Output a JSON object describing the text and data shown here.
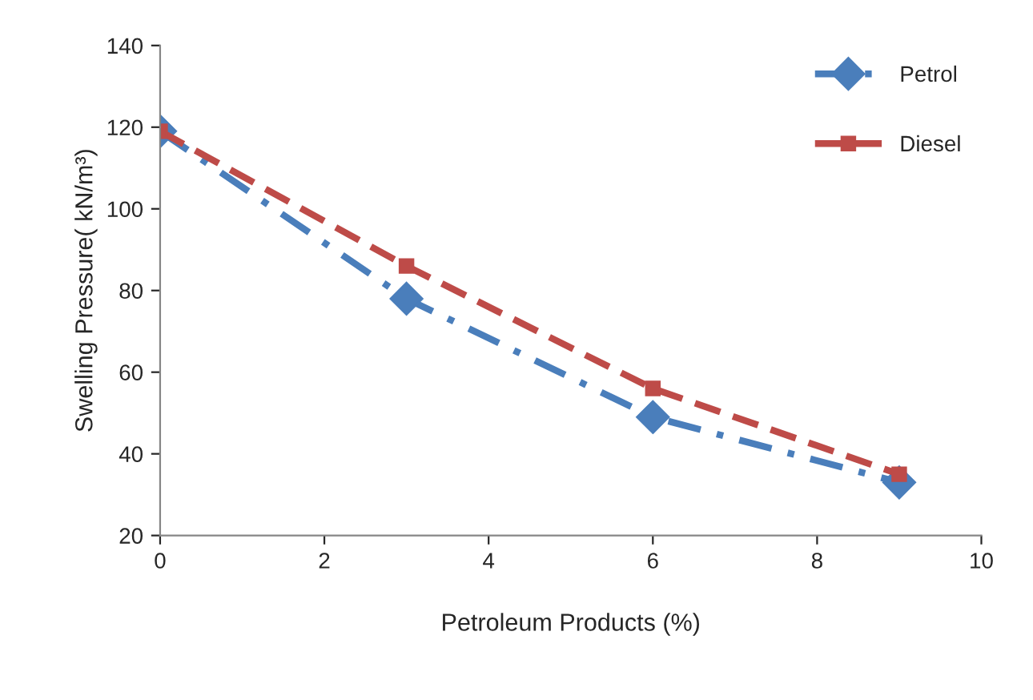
{
  "chart_data": {
    "type": "line",
    "x": [
      0,
      3,
      6,
      9
    ],
    "series": [
      {
        "name": "Petrol",
        "color": "#4a7ebb",
        "values": [
          119,
          78,
          49,
          33
        ],
        "marker": "diamond",
        "line_style": "dashdot"
      },
      {
        "name": "Diesel",
        "color": "#be4b48",
        "values": [
          119,
          86,
          56,
          35
        ],
        "marker": "square",
        "line_style": "dashed"
      }
    ],
    "xlabel": "Petroleum Products (%)",
    "ylabel": "Swelling Pressure( kN/m³)",
    "xlim": [
      0,
      10
    ],
    "xticks": [
      0,
      2,
      4,
      6,
      8,
      10
    ],
    "ylim": [
      20,
      140
    ],
    "yticks": [
      20,
      40,
      60,
      80,
      100,
      120,
      140
    ],
    "legend": "top right",
    "grid": false
  }
}
